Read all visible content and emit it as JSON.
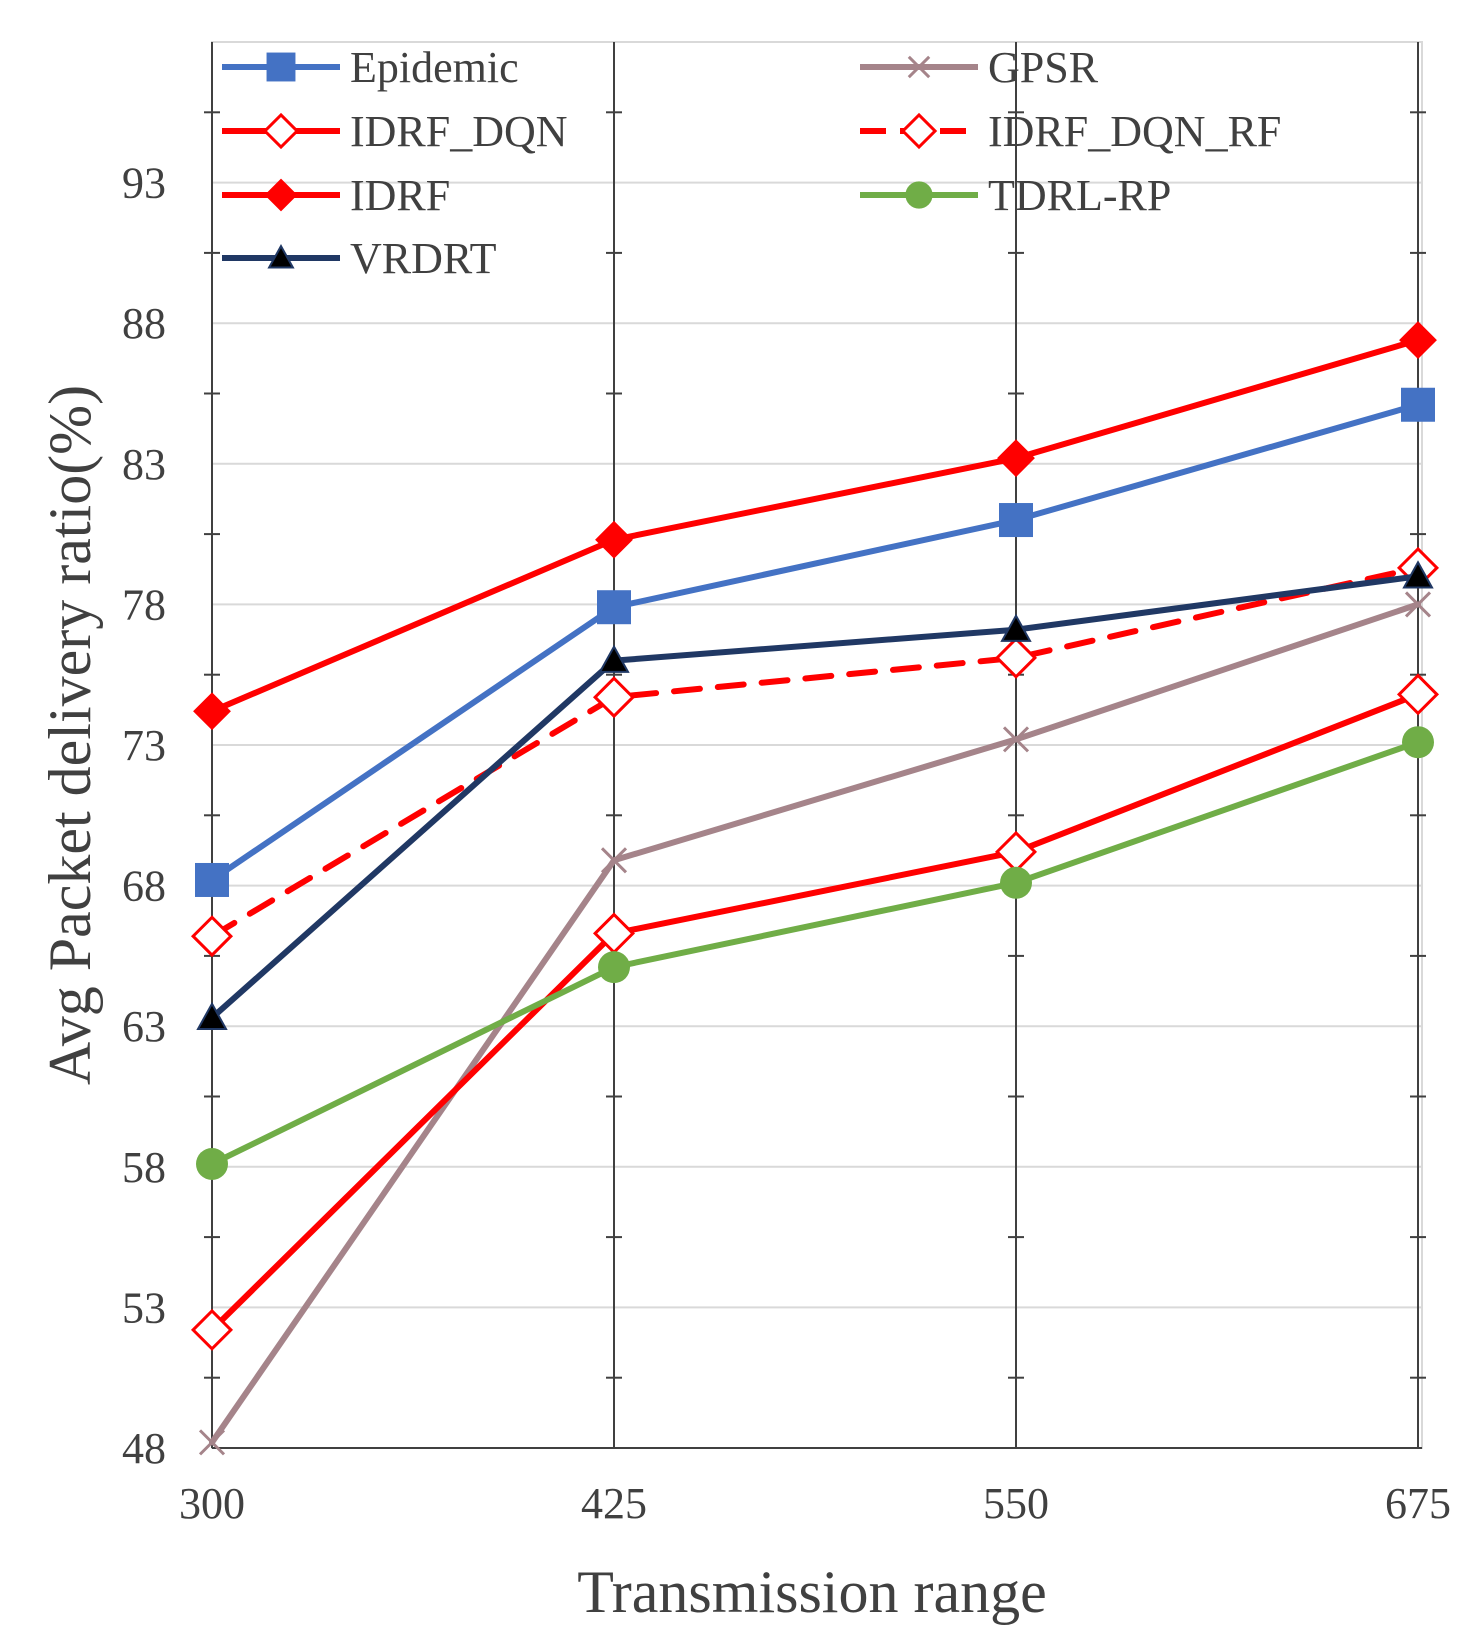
{
  "chart_data": {
    "type": "line",
    "title": "",
    "xlabel": "Transmission range",
    "ylabel": "Avg Packet delivery ratio(%)",
    "x": [
      300,
      425,
      550,
      675
    ],
    "x_tick_labels": [
      "300",
      "425",
      "550",
      "675"
    ],
    "ylim": [
      48,
      98
    ],
    "y_ticks": [
      48,
      53,
      58,
      63,
      68,
      73,
      78,
      83,
      88,
      93
    ],
    "y_tick_labels": [
      "48",
      "53",
      "58",
      "63",
      "68",
      "73",
      "78",
      "83",
      "88",
      "93"
    ],
    "grid": true,
    "legend_position": "top",
    "series": [
      {
        "name": "Epidemic",
        "values": [
          68.2,
          77.9,
          81.0,
          85.1
        ],
        "color": "#4472C4",
        "marker": "square",
        "dash": false
      },
      {
        "name": "GPSR",
        "values": [
          48.2,
          68.9,
          73.2,
          78.0
        ],
        "color": "#A5848A",
        "marker": "x",
        "dash": false
      },
      {
        "name": "IDRF_DQN",
        "values": [
          52.2,
          66.3,
          69.2,
          74.8
        ],
        "color": "#FF0000",
        "marker": "diamond-open",
        "dash": false
      },
      {
        "name": "IDRF_DQN_RF",
        "values": [
          66.2,
          74.7,
          76.1,
          79.3
        ],
        "color": "#FF0000",
        "marker": "diamond-open",
        "dash": true
      },
      {
        "name": "IDRF",
        "values": [
          74.2,
          80.3,
          83.2,
          87.4
        ],
        "color": "#FF0000",
        "marker": "diamond",
        "dash": false
      },
      {
        "name": "TDRL-RP",
        "values": [
          58.1,
          65.1,
          68.1,
          73.1
        ],
        "color": "#70AD47",
        "marker": "circle",
        "dash": false
      },
      {
        "name": "VRDRT",
        "values": [
          63.3,
          76.0,
          77.1,
          79.0
        ],
        "color": "#203864",
        "marker": "triangle",
        "dash": false
      }
    ]
  }
}
